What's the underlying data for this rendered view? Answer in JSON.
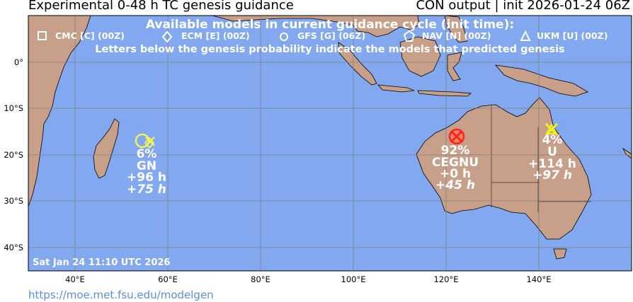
{
  "title_left": "Experimental 0-48 h TC genesis guidance",
  "title_right": "CON output | init 2026-01-24 06Z",
  "header": {
    "line1": "Available models in current guidance cycle (init time):",
    "line3": "Letters below the genesis probability indicate the models that predicted genesis",
    "models": [
      {
        "icon": "square-icon",
        "label": "CMC [C] (00Z)"
      },
      {
        "icon": "diamond-icon",
        "label": "ECM [E] (00Z)"
      },
      {
        "icon": "circle-icon",
        "label": "GFS [G] (06Z)"
      },
      {
        "icon": "pentagon-icon",
        "label": "NAV [N] (00Z)"
      },
      {
        "icon": "triangle-icon",
        "label": "UKM [U] (00Z)"
      }
    ]
  },
  "map": {
    "lon_range": [
      30,
      160
    ],
    "lat_range": [
      -45,
      10
    ],
    "ocean_color": "#82a8ef",
    "land_color": "#c8a08a",
    "grid": true
  },
  "lat_labels": [
    "0°",
    "10°S",
    "20°S",
    "30°S",
    "40°S"
  ],
  "lon_labels": [
    "40°E",
    "60°E",
    "80°E",
    "100°E",
    "120°E",
    "140°E"
  ],
  "systems": [
    {
      "name": "madagascar",
      "lon": 55.2,
      "lat": -17.5,
      "prob": "6%",
      "models": "GN",
      "lead": "+96 h",
      "lead_italic": "+75 h",
      "color": "#f0f060"
    },
    {
      "name": "nw-australia",
      "lon": 122.0,
      "lat": -16.2,
      "prob": "92%",
      "models": "CEGNU",
      "lead": "+0 h",
      "lead_italic": "+45 h",
      "color": "#ff2020"
    },
    {
      "name": "queensland",
      "lon": 142.5,
      "lat": -14.8,
      "prob": "4%",
      "models": "U",
      "lead": "+114 h",
      "lead_italic": "+97 h",
      "color": "#f0f020"
    }
  ],
  "timestamp": "Sat Jan 24 11:10 UTC 2026",
  "url": "https://moe.met.fsu.edu/modelgen"
}
